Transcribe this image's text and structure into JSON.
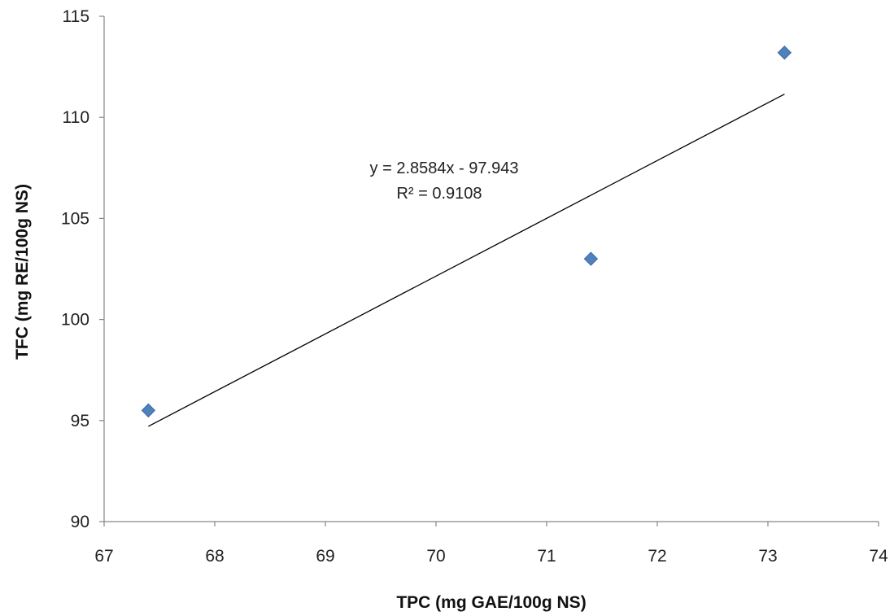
{
  "chart_data": {
    "type": "scatter",
    "xlabel": "TPC (mg GAE/100g NS)",
    "ylabel": "TFC  (mg RE/100g NS)",
    "xlim": [
      67,
      74
    ],
    "ylim": [
      90,
      115
    ],
    "x_ticks": [
      "67",
      "68",
      "69",
      "70",
      "71",
      "72",
      "73",
      "74"
    ],
    "y_ticks": [
      "90",
      "95",
      "100",
      "105",
      "110",
      "115"
    ],
    "grid": false,
    "legend": "none",
    "series": [
      {
        "marker": "diamond",
        "color": "#4f81bd",
        "points": [
          {
            "x": 67.4,
            "y": 95.5
          },
          {
            "x": 71.4,
            "y": 103.0
          },
          {
            "x": 73.15,
            "y": 113.2
          }
        ]
      }
    ],
    "trendline": {
      "type": "linear",
      "slope": 2.8584,
      "intercept": -97.943,
      "x_range": [
        67.4,
        73.15
      ],
      "color": "#000000",
      "equation": "y = 2.8584x - 97.943",
      "r2_label": "R² = 0.9108"
    }
  }
}
